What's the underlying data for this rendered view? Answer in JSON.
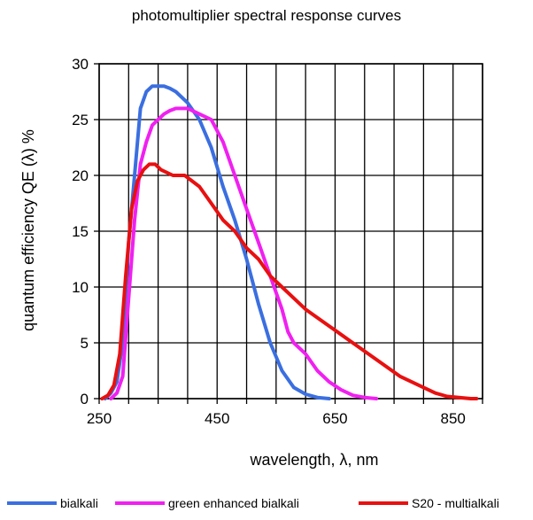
{
  "chart_data": {
    "type": "line",
    "title": "photomultiplier spectral response curves",
    "xlabel": "wavelength, λ, nm",
    "ylabel": "quantum efficiency QE (λ) %",
    "xlim": [
      250,
      900
    ],
    "ylim": [
      0,
      30
    ],
    "xticks": [
      250,
      450,
      650,
      850
    ],
    "yticks": [
      0,
      5,
      10,
      15,
      20,
      25,
      30
    ],
    "grid": true,
    "legend_position": "bottom",
    "series": [
      {
        "name": "bialkali",
        "color": "#3b6fe0",
        "x": [
          260,
          270,
          280,
          290,
          300,
          310,
          320,
          330,
          340,
          350,
          360,
          370,
          380,
          400,
          420,
          440,
          460,
          480,
          500,
          520,
          540,
          560,
          580,
          600,
          620,
          640
        ],
        "y": [
          0,
          0.5,
          1.5,
          5,
          14,
          20,
          26,
          27.5,
          28,
          28,
          28,
          27.8,
          27.5,
          26.5,
          25,
          22.5,
          19,
          16,
          12.5,
          8.5,
          5,
          2.5,
          1,
          0.4,
          0.1,
          0
        ]
      },
      {
        "name": "green enhanced bialkali",
        "color": "#f020f0",
        "x": [
          270,
          280,
          290,
          300,
          310,
          320,
          330,
          340,
          350,
          360,
          370,
          380,
          400,
          420,
          440,
          460,
          480,
          500,
          520,
          540,
          560,
          570,
          580,
          600,
          620,
          640,
          660,
          680,
          700,
          720
        ],
        "y": [
          0,
          0.5,
          2,
          9,
          16,
          21,
          23,
          24.5,
          25,
          25.5,
          25.8,
          26,
          26,
          25.5,
          25,
          23,
          20,
          17,
          14,
          11,
          8,
          6,
          5,
          4,
          2.5,
          1.5,
          0.8,
          0.3,
          0.1,
          0
        ]
      },
      {
        "name": "S20 - multialkali",
        "color": "#e81010",
        "x": [
          255,
          265,
          275,
          285,
          295,
          305,
          315,
          325,
          335,
          345,
          355,
          375,
          395,
          420,
          440,
          460,
          480,
          500,
          520,
          540,
          560,
          580,
          600,
          640,
          680,
          720,
          760,
          800,
          820,
          840,
          860,
          880,
          890
        ],
        "y": [
          0,
          0.3,
          1.2,
          4,
          11,
          17,
          19.5,
          20.5,
          21,
          21,
          20.5,
          20,
          20,
          19,
          17.5,
          16,
          15,
          13.5,
          12.5,
          11,
          10,
          9,
          8,
          6.5,
          5,
          3.5,
          2,
          1,
          0.5,
          0.2,
          0.1,
          0,
          0
        ]
      }
    ]
  }
}
